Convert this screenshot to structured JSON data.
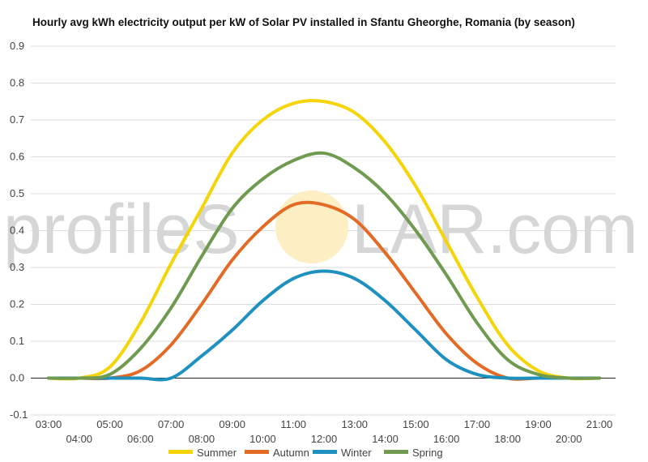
{
  "watermark": {
    "left": "profileS",
    "right": "LAR.com",
    "color": "#d6d6d6",
    "sun_color": "#fdeec4"
  },
  "chart_data": {
    "type": "line",
    "title": "Hourly avg kWh electricity output per kW of Solar PV installed in Sfantu Gheorghe, Romania (by season)",
    "xlabel": "",
    "ylabel": "",
    "ylim": [
      -0.1,
      0.9
    ],
    "yticks": [
      "0.9",
      "0.8",
      "0.7",
      "0.6",
      "0.5",
      "0.4",
      "0.3",
      "0.2",
      "0.1",
      "0.0",
      "-0.1"
    ],
    "x": [
      "03:00",
      "04:00",
      "05:00",
      "06:00",
      "07:00",
      "08:00",
      "09:00",
      "10:00",
      "11:00",
      "12:00",
      "13:00",
      "14:00",
      "15:00",
      "16:00",
      "17:00",
      "18:00",
      "19:00",
      "20:00",
      "21:00"
    ],
    "grid": true,
    "legend_position": "bottom",
    "series": [
      {
        "name": "Summer",
        "color": "#f5d50a",
        "values": [
          0.0,
          0.0,
          0.03,
          0.15,
          0.31,
          0.46,
          0.61,
          0.7,
          0.745,
          0.75,
          0.72,
          0.64,
          0.52,
          0.37,
          0.22,
          0.09,
          0.02,
          0.0,
          0.0
        ]
      },
      {
        "name": "Autumn",
        "color": "#e46b25",
        "values": [
          0.0,
          0.0,
          0.0,
          0.02,
          0.09,
          0.2,
          0.32,
          0.41,
          0.47,
          0.47,
          0.43,
          0.34,
          0.23,
          0.12,
          0.04,
          0.0,
          0.0,
          0.0,
          0.0
        ]
      },
      {
        "name": "Winter",
        "color": "#1f91c1",
        "values": [
          0.0,
          0.0,
          0.0,
          0.0,
          0.0,
          0.06,
          0.13,
          0.21,
          0.27,
          0.29,
          0.27,
          0.21,
          0.13,
          0.05,
          0.01,
          0.0,
          0.0,
          0.0,
          0.0
        ]
      },
      {
        "name": "Spring",
        "color": "#6f9a4f",
        "values": [
          0.0,
          0.0,
          0.01,
          0.08,
          0.19,
          0.33,
          0.46,
          0.54,
          0.59,
          0.61,
          0.57,
          0.5,
          0.4,
          0.28,
          0.15,
          0.05,
          0.01,
          0.0,
          0.0
        ]
      }
    ]
  }
}
